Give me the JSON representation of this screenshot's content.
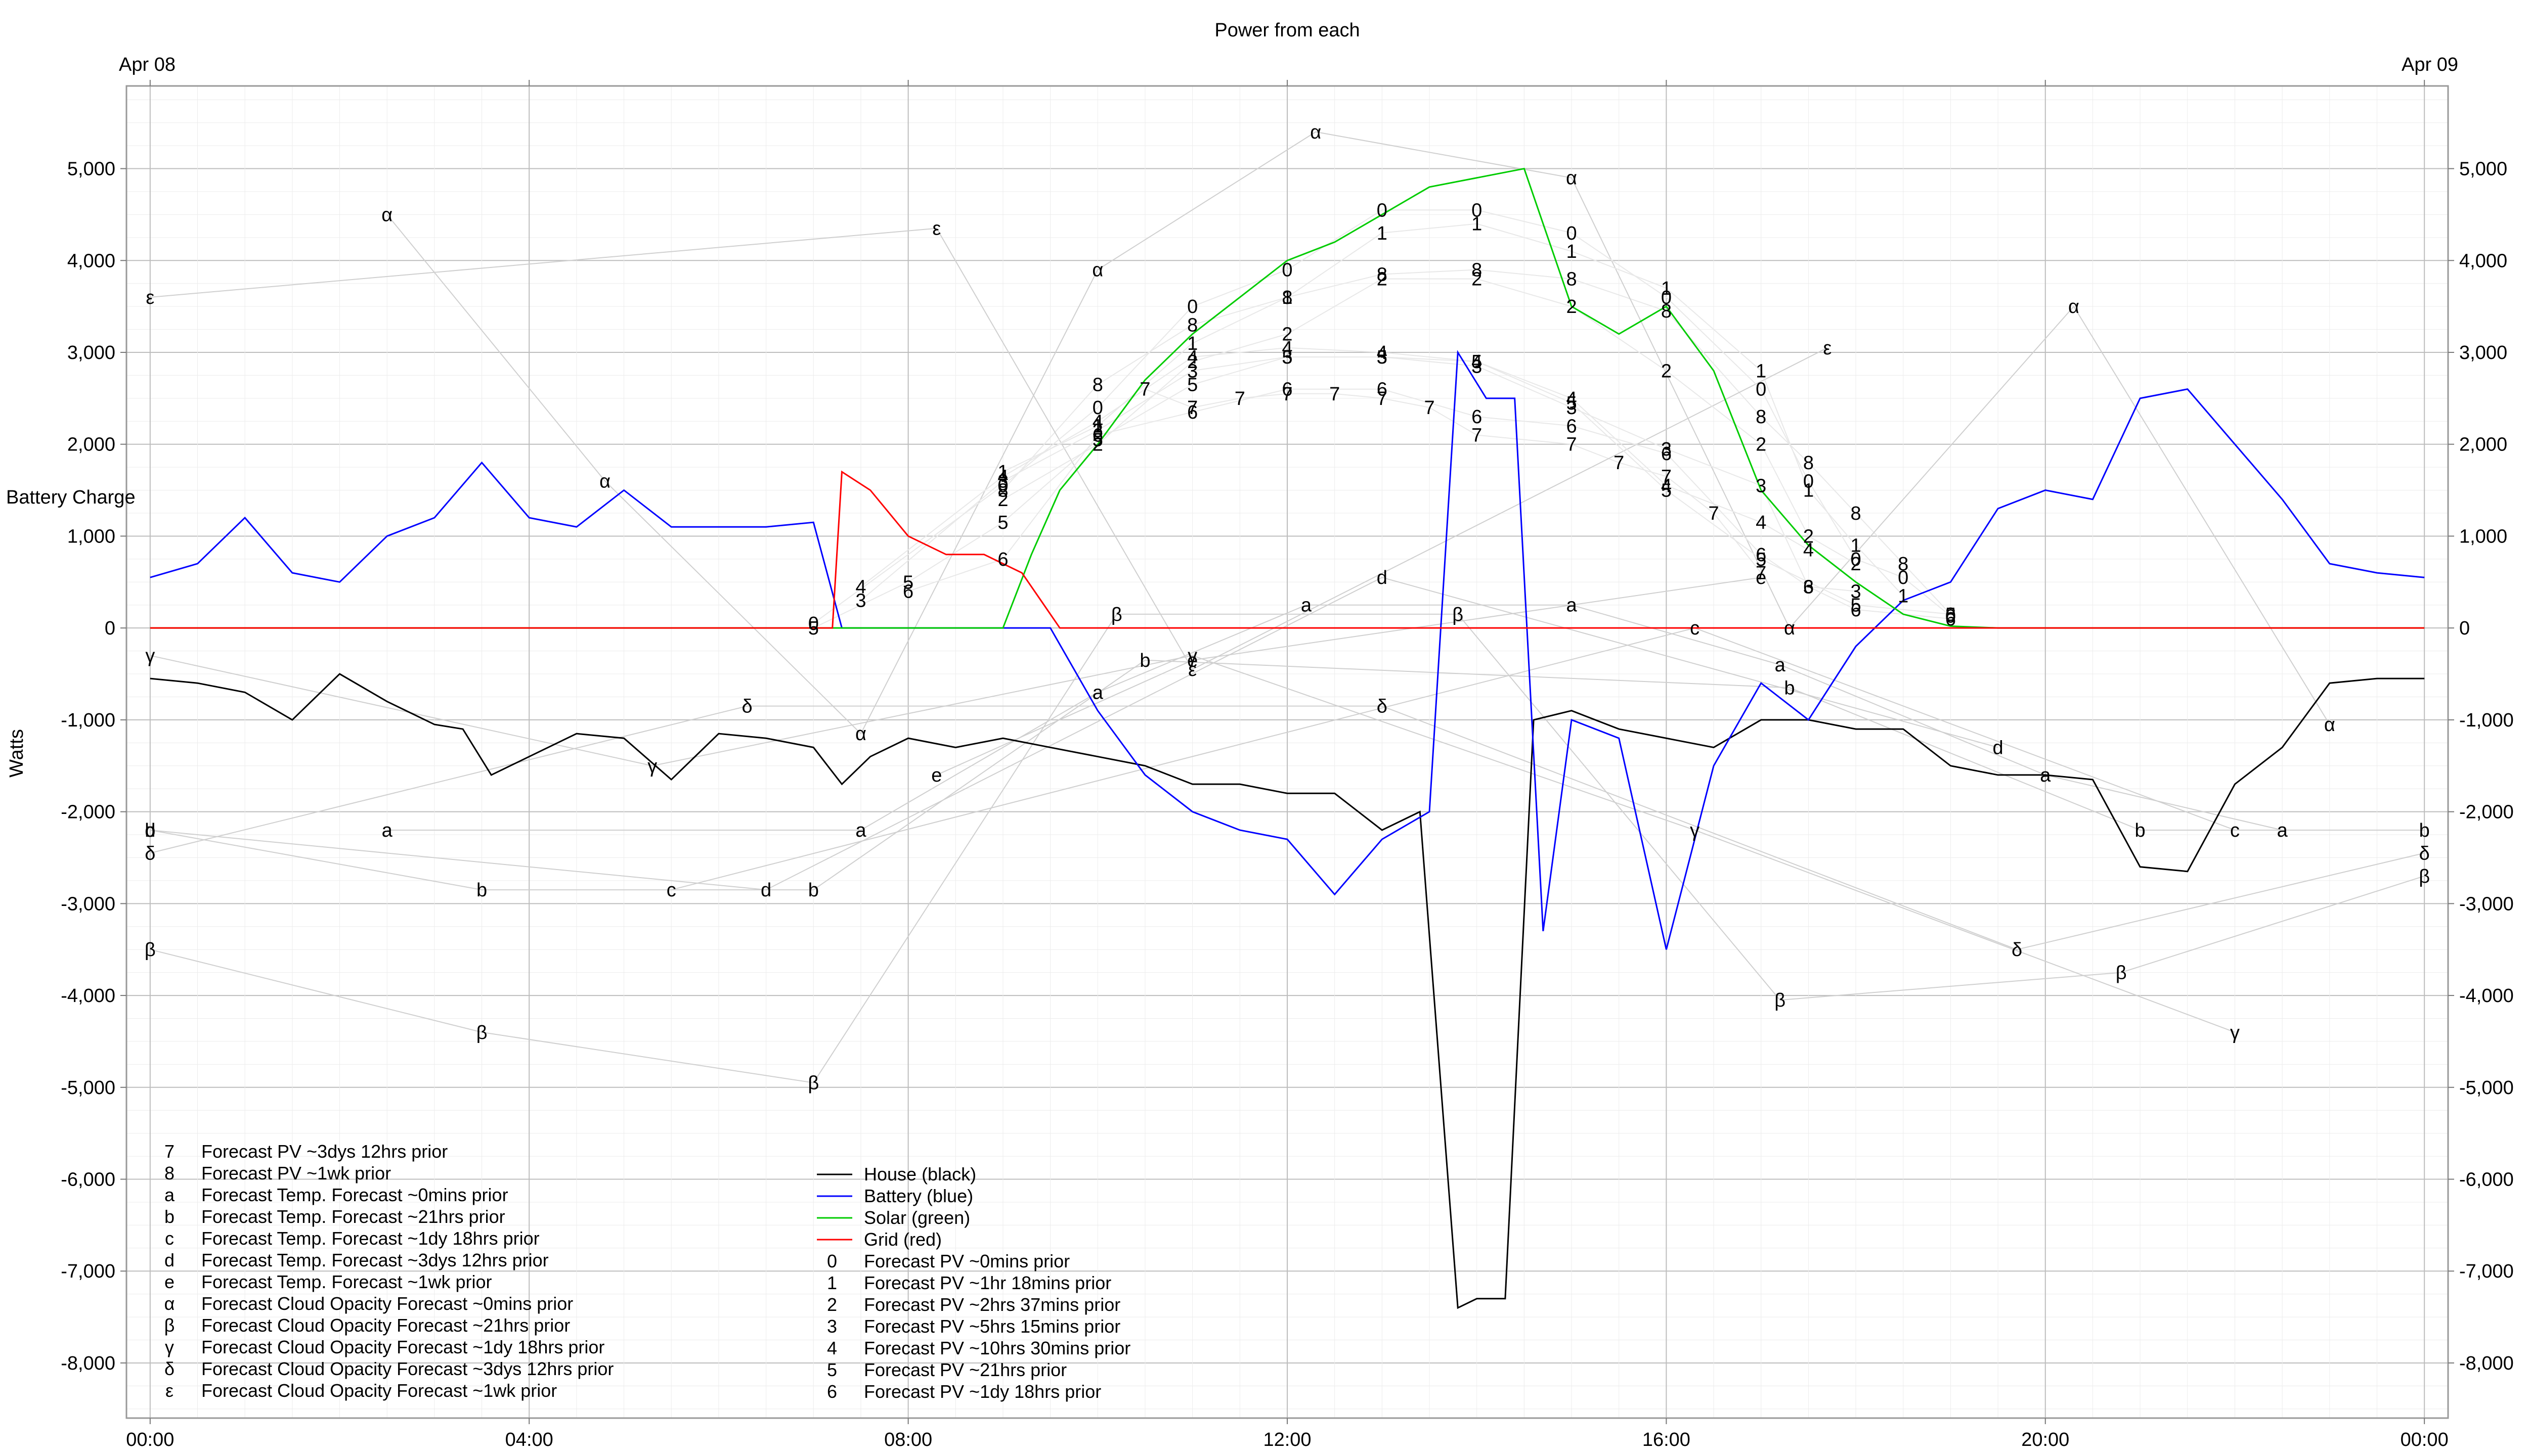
{
  "chart_data": {
    "type": "line",
    "title": "Power from each",
    "ylabel": "Watts",
    "ylim": [
      -8600,
      5900
    ],
    "y_ticks": [
      5000,
      4000,
      3000,
      2000,
      1000,
      0,
      -1000,
      -2000,
      -3000,
      -4000,
      -5000,
      -6000,
      -7000,
      -8000
    ],
    "y_tick_labels": [
      "5,000",
      "4,000",
      "3,000",
      "2,000",
      "1,000",
      "0",
      "-1,000",
      "-2,000",
      "-3,000",
      "-4,000",
      "-5,000",
      "-6,000",
      "-7,000",
      "-8,000"
    ],
    "x_range_hours": [
      -0.25,
      24.25
    ],
    "x_ticks": [
      0,
      4,
      8,
      12,
      16,
      20,
      24
    ],
    "x_tick_labels": [
      "00:00",
      "04:00",
      "08:00",
      "12:00",
      "16:00",
      "20:00",
      "00:00"
    ],
    "date_labels": {
      "left": "Apr 08",
      "right": "Apr 09"
    },
    "battery_charge_label": "Battery Charge",
    "grid": true,
    "series": [
      {
        "name": "House (black)",
        "color": "#000000",
        "x": [
          0,
          0.5,
          1,
          1.5,
          2,
          2.5,
          3,
          3.3,
          3.6,
          4,
          4.5,
          5,
          5.5,
          6,
          6.5,
          7,
          7.3,
          7.6,
          8,
          8.5,
          9,
          9.5,
          10,
          10.5,
          11,
          11.5,
          12,
          12.5,
          13,
          13.4,
          13.8,
          14.0,
          14.3,
          14.6,
          15,
          15.5,
          16,
          16.5,
          17,
          17.5,
          18,
          18.5,
          19,
          19.5,
          20,
          20.5,
          21,
          21.5,
          22,
          22.5,
          23,
          23.5,
          24
        ],
        "y": [
          -550,
          -600,
          -700,
          -1000,
          -500,
          -800,
          -1050,
          -1100,
          -1600,
          -1400,
          -1150,
          -1200,
          -1650,
          -1150,
          -1200,
          -1300,
          -1700,
          -1400,
          -1200,
          -1300,
          -1200,
          -1300,
          -1400,
          -1500,
          -1700,
          -1700,
          -1800,
          -1800,
          -2200,
          -2000,
          -7400,
          -7300,
          -7300,
          -1000,
          -900,
          -1100,
          -1200,
          -1300,
          -1000,
          -1000,
          -1100,
          -1100,
          -1500,
          -1600,
          -1600,
          -1650,
          -2600,
          -2650,
          -1700,
          -1300,
          -600,
          -550,
          -550
        ]
      },
      {
        "name": "Battery (blue)",
        "color": "#0000ff",
        "x": [
          0,
          0.5,
          1,
          1.5,
          2,
          2.5,
          3,
          3.5,
          4,
          4.5,
          5,
          5.5,
          6,
          6.5,
          7,
          7.3,
          7.6,
          8,
          8.5,
          9,
          9.5,
          10,
          10.5,
          11,
          11.5,
          12,
          12.5,
          13,
          13.5,
          13.8,
          14.1,
          14.4,
          14.7,
          15,
          15.5,
          16,
          16.5,
          17,
          17.5,
          18,
          18.5,
          19,
          19.5,
          20,
          20.5,
          21,
          21.5,
          22,
          22.5,
          23,
          23.5,
          24
        ],
        "y": [
          550,
          700,
          1200,
          600,
          500,
          1000,
          1200,
          1800,
          1200,
          1100,
          1500,
          1100,
          1100,
          1100,
          1150,
          0,
          0,
          0,
          0,
          0,
          0,
          -900,
          -1600,
          -2000,
          -2200,
          -2300,
          -2900,
          -2300,
          -2000,
          3000,
          2500,
          2500,
          -3300,
          -1000,
          -1200,
          -3500,
          -1500,
          -600,
          -1000,
          -200,
          300,
          500,
          1300,
          1500,
          1400,
          2500,
          2600,
          2000,
          1400,
          700,
          600,
          550
        ]
      },
      {
        "name": "Solar (green)",
        "color": "#00cc00",
        "x": [
          0,
          9,
          9.3,
          9.6,
          10,
          10.5,
          11,
          11.5,
          12,
          12.5,
          13,
          13.5,
          14,
          14.5,
          15,
          15.5,
          16,
          16.5,
          17,
          17.5,
          18,
          18.5,
          19,
          19.5,
          24
        ],
        "y": [
          0,
          0,
          800,
          1500,
          2000,
          2700,
          3200,
          3600,
          4000,
          4200,
          4500,
          4800,
          4900,
          5000,
          3500,
          3200,
          3500,
          2800,
          1500,
          900,
          500,
          150,
          20,
          0,
          0
        ]
      },
      {
        "name": "Grid (red)",
        "color": "#ff0000",
        "x": [
          0,
          7.2,
          7.3,
          7.6,
          8,
          8.4,
          8.8,
          9.2,
          9.4,
          9.6,
          10,
          24
        ],
        "y": [
          0,
          0,
          1700,
          1500,
          1000,
          800,
          800,
          600,
          300,
          0,
          0,
          0
        ]
      }
    ],
    "marker_series": [
      {
        "symbol": "7",
        "name": "Forecast PV ~3dys 12hrs prior",
        "points": [
          [
            10.5,
            2600
          ],
          [
            11,
            2400
          ],
          [
            11.5,
            2500
          ],
          [
            12,
            2550
          ],
          [
            12.5,
            2550
          ],
          [
            13,
            2500
          ],
          [
            13.5,
            2400
          ],
          [
            14,
            2100
          ],
          [
            15,
            2000
          ],
          [
            15.5,
            1800
          ],
          [
            16,
            1650
          ],
          [
            16.5,
            1250
          ],
          [
            17,
            600
          ]
        ]
      },
      {
        "symbol": "8",
        "name": "Forecast PV ~1wk prior",
        "points": [
          [
            9,
            1500
          ],
          [
            10,
            2650
          ],
          [
            11,
            3300
          ],
          [
            12,
            3600
          ],
          [
            13,
            3850
          ],
          [
            14,
            3900
          ],
          [
            15,
            3800
          ],
          [
            16,
            3450
          ],
          [
            17,
            2300
          ],
          [
            17.5,
            1800
          ],
          [
            18,
            1250
          ],
          [
            18.5,
            700
          ],
          [
            19,
            150
          ]
        ]
      },
      {
        "symbol": "a",
        "name": "Forecast Temp. Forecast ~0mins prior",
        "points": [
          [
            2.5,
            -2200
          ],
          [
            7.5,
            -2200
          ],
          [
            10,
            -700
          ],
          [
            12.2,
            250
          ],
          [
            15,
            250
          ],
          [
            17.2,
            -400
          ],
          [
            20,
            -1600
          ],
          [
            22.5,
            -2200
          ]
        ]
      },
      {
        "symbol": "b",
        "name": "Forecast Temp. Forecast ~21hrs prior",
        "points": [
          [
            0,
            -2200
          ],
          [
            3.5,
            -2850
          ],
          [
            7,
            -2850
          ],
          [
            10.5,
            -350
          ],
          [
            17.3,
            -650
          ],
          [
            21,
            -2200
          ],
          [
            24,
            -2200
          ]
        ]
      },
      {
        "symbol": "c",
        "name": "Forecast Temp. Forecast ~1dy 18hrs prior",
        "points": [
          [
            5.5,
            -2850
          ],
          [
            16.3,
            0
          ],
          [
            22,
            -2200
          ]
        ]
      },
      {
        "symbol": "d",
        "name": "Forecast Temp. Forecast ~3dys 12hrs prior",
        "points": [
          [
            0,
            -2200
          ],
          [
            6.5,
            -2850
          ],
          [
            13,
            550
          ],
          [
            19.5,
            -1300
          ]
        ]
      },
      {
        "symbol": "e",
        "name": "Forecast Temp. Forecast ~1wk prior",
        "points": [
          [
            8.3,
            -1600
          ],
          [
            11,
            -350
          ],
          [
            17,
            550
          ]
        ]
      },
      {
        "symbol": "α",
        "name": "Forecast Cloud Opacity Forecast ~0mins prior",
        "points": [
          [
            2.5,
            4500
          ],
          [
            4.8,
            1600
          ],
          [
            7.5,
            -1150
          ],
          [
            10,
            3900
          ],
          [
            12.3,
            5400
          ],
          [
            15,
            4900
          ],
          [
            17.3,
            0
          ],
          [
            20.3,
            3500
          ],
          [
            23,
            -1050
          ]
        ]
      },
      {
        "symbol": "β",
        "name": "Forecast Cloud Opacity Forecast ~21hrs prior",
        "points": [
          [
            0,
            -3500
          ],
          [
            3.5,
            -4400
          ],
          [
            7,
            -4950
          ],
          [
            10.2,
            150
          ],
          [
            13.8,
            150
          ],
          [
            17.2,
            -4050
          ],
          [
            20.8,
            -3750
          ],
          [
            24,
            -2700
          ]
        ]
      },
      {
        "symbol": "γ",
        "name": "Forecast Cloud Opacity Forecast ~1dy 18hrs prior",
        "points": [
          [
            0,
            -300
          ],
          [
            5.3,
            -1500
          ],
          [
            11,
            -300
          ],
          [
            16.3,
            -2200
          ],
          [
            22,
            -4400
          ]
        ]
      },
      {
        "symbol": "δ",
        "name": "Forecast Cloud Opacity Forecast ~3dys 12hrs prior",
        "points": [
          [
            0,
            -2450
          ],
          [
            6.3,
            -850
          ],
          [
            13,
            -850
          ],
          [
            19.7,
            -3500
          ],
          [
            24,
            -2450
          ]
        ]
      },
      {
        "symbol": "ε",
        "name": "Forecast Cloud Opacity Forecast ~1wk prior",
        "points": [
          [
            0,
            3600
          ],
          [
            8.3,
            4350
          ],
          [
            11,
            -450
          ],
          [
            17.7,
            3050
          ]
        ]
      },
      {
        "symbol": "0",
        "name": "Forecast PV ~0mins prior",
        "points": [
          [
            7,
            50
          ],
          [
            9,
            1550
          ],
          [
            10,
            2400
          ],
          [
            11,
            3500
          ],
          [
            12,
            3900
          ],
          [
            13,
            4550
          ],
          [
            14,
            4550
          ],
          [
            15,
            4300
          ],
          [
            16,
            3600
          ],
          [
            17,
            2600
          ],
          [
            17.5,
            1600
          ],
          [
            18,
            750
          ],
          [
            18.5,
            550
          ],
          [
            19,
            130
          ]
        ]
      },
      {
        "symbol": "1",
        "name": "Forecast PV ~1hr 18mins prior",
        "points": [
          [
            9,
            1700
          ],
          [
            10,
            2200
          ],
          [
            11,
            3100
          ],
          [
            12,
            3600
          ],
          [
            13,
            4300
          ],
          [
            14,
            4400
          ],
          [
            15,
            4100
          ],
          [
            16,
            3700
          ],
          [
            17,
            2800
          ],
          [
            17.5,
            1500
          ],
          [
            18,
            900
          ],
          [
            18.5,
            350
          ]
        ]
      },
      {
        "symbol": "2",
        "name": "Forecast PV ~2hrs 37mins prior",
        "points": [
          [
            9,
            1400
          ],
          [
            10,
            2000
          ],
          [
            11,
            2900
          ],
          [
            12,
            3200
          ],
          [
            13,
            3800
          ],
          [
            14,
            3800
          ],
          [
            15,
            3500
          ],
          [
            16,
            2800
          ],
          [
            17,
            2000
          ],
          [
            17.5,
            1000
          ],
          [
            18,
            700
          ]
        ]
      },
      {
        "symbol": "3",
        "name": "Forecast PV ~5hrs 15mins prior",
        "points": [
          [
            7.5,
            300
          ],
          [
            9,
            1600
          ],
          [
            10,
            2150
          ],
          [
            11,
            2800
          ],
          [
            12,
            2950
          ],
          [
            13,
            2950
          ],
          [
            14,
            2850
          ],
          [
            15,
            2400
          ],
          [
            16,
            1950
          ],
          [
            17,
            1550
          ],
          [
            17.5,
            450
          ],
          [
            18,
            400
          ]
        ]
      },
      {
        "symbol": "4",
        "name": "Forecast PV ~10hrs 30mins prior",
        "points": [
          [
            7.5,
            450
          ],
          [
            9,
            1650
          ],
          [
            10,
            2250
          ],
          [
            11,
            2950
          ],
          [
            12,
            3050
          ],
          [
            13,
            3000
          ],
          [
            14,
            2900
          ],
          [
            15,
            2500
          ],
          [
            16,
            1550
          ],
          [
            17,
            1150
          ],
          [
            17.5,
            850
          ]
        ]
      },
      {
        "symbol": "5",
        "name": "Forecast PV ~21hrs prior",
        "points": [
          [
            7,
            0
          ],
          [
            8,
            500
          ],
          [
            9,
            1150
          ],
          [
            10,
            2050
          ],
          [
            11,
            2650
          ],
          [
            12,
            2950
          ],
          [
            13,
            2950
          ],
          [
            14,
            2900
          ],
          [
            15,
            2450
          ],
          [
            16,
            1500
          ],
          [
            17,
            750
          ],
          [
            18,
            250
          ],
          [
            19,
            150
          ]
        ]
      },
      {
        "symbol": "6",
        "name": "Forecast PV ~1dy 18hrs prior",
        "points": [
          [
            8,
            400
          ],
          [
            9,
            750
          ],
          [
            10,
            2100
          ],
          [
            11,
            2350
          ],
          [
            12,
            2600
          ],
          [
            13,
            2600
          ],
          [
            14,
            2300
          ],
          [
            15,
            2200
          ],
          [
            16,
            1900
          ],
          [
            17,
            800
          ],
          [
            17.5,
            450
          ],
          [
            18,
            200
          ],
          [
            19,
            100
          ]
        ]
      }
    ],
    "legend": {
      "left": [
        "7",
        "8",
        "a",
        "b",
        "c",
        "d",
        "e",
        "α",
        "β",
        "γ",
        "δ",
        "ε"
      ],
      "right": [
        "House (black)",
        "Battery (blue)",
        "Solar (green)",
        "Grid (red)",
        "0",
        "1",
        "2",
        "3",
        "4",
        "5",
        "6"
      ]
    }
  }
}
